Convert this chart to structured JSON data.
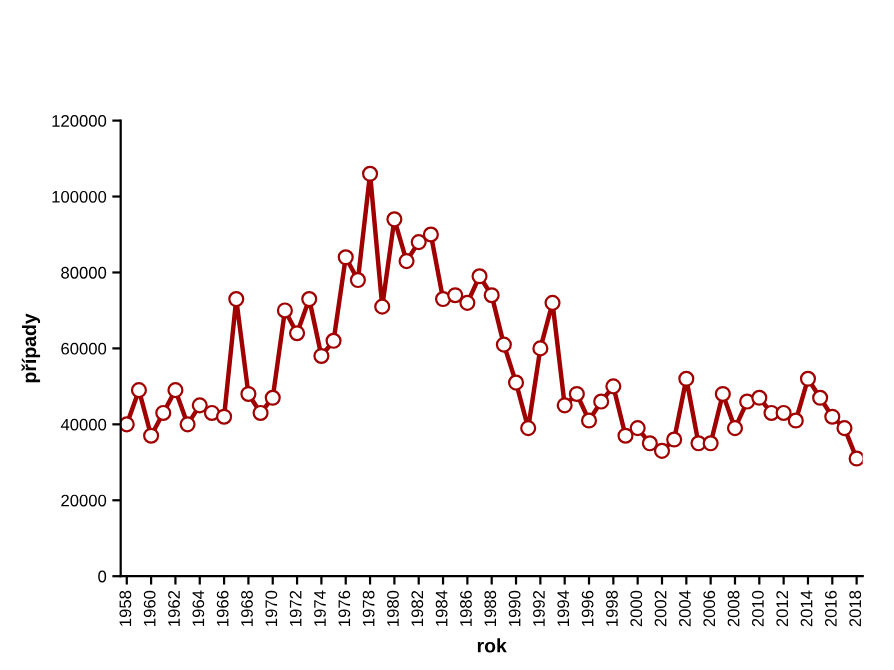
{
  "chart_data": {
    "type": "line",
    "xlabel": "rok",
    "ylabel": "případy",
    "x": [
      1958,
      1959,
      1960,
      1961,
      1962,
      1963,
      1964,
      1965,
      1966,
      1967,
      1968,
      1969,
      1970,
      1971,
      1972,
      1973,
      1974,
      1975,
      1976,
      1977,
      1978,
      1979,
      1980,
      1981,
      1982,
      1983,
      1984,
      1985,
      1986,
      1987,
      1988,
      1989,
      1990,
      1991,
      1992,
      1993,
      1994,
      1995,
      1996,
      1997,
      1998,
      1999,
      2000,
      2001,
      2002,
      2003,
      2004,
      2005,
      2006,
      2007,
      2008,
      2009,
      2010,
      2011,
      2012,
      2013,
      2014,
      2015,
      2016,
      2017,
      2018
    ],
    "series": [
      {
        "color": "#a00000",
        "values": [
          40000,
          49000,
          37000,
          43000,
          49000,
          40000,
          45000,
          43000,
          42000,
          73000,
          48000,
          43000,
          47000,
          70000,
          64000,
          73000,
          58000,
          62000,
          84000,
          78000,
          106000,
          71000,
          94000,
          83000,
          88000,
          90000,
          73000,
          74000,
          72000,
          79000,
          74000,
          61000,
          51000,
          39000,
          60000,
          72000,
          45000,
          48000,
          41000,
          46000,
          50000,
          37000,
          39000,
          35000,
          33000,
          36000,
          52000,
          35000,
          35000,
          48000,
          39000,
          46000,
          47000,
          43000,
          43000,
          41000,
          52000,
          47000,
          42000,
          39000,
          31000
        ]
      }
    ],
    "xlim": [
      1957.5,
      2018.5
    ],
    "xticks": [
      1958,
      1960,
      1962,
      1964,
      1966,
      1968,
      1970,
      1972,
      1974,
      1976,
      1978,
      1980,
      1982,
      1984,
      1986,
      1988,
      1990,
      1992,
      1994,
      1996,
      1998,
      2000,
      2002,
      2004,
      2006,
      2008,
      2010,
      2012,
      2014,
      2016,
      2018
    ],
    "ylim": [
      0,
      120000
    ],
    "yticks": [
      0,
      20000,
      40000,
      60000,
      80000,
      100000,
      120000
    ],
    "marker": "circle",
    "line_style": "solid",
    "grid": false,
    "legend": false
  }
}
